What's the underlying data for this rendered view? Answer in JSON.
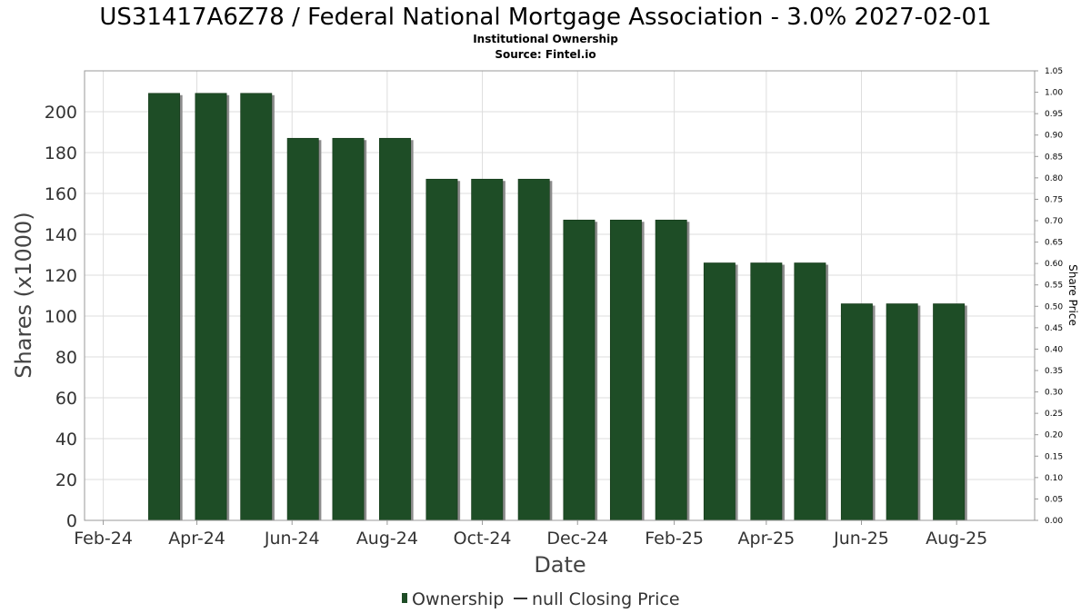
{
  "title": "US31417A6Z78 / Federal National Mortgage Association - 3.0% 2027-02-01",
  "subtitle_lines": [
    "Institutional Ownership",
    "Source: Fintel.io"
  ],
  "colors": {
    "bar": "#1e4d26",
    "bar_shadow": "#8c8c8c",
    "grid": "#dddddd",
    "frame": "#999999"
  },
  "legend": {
    "ownership_label": "Ownership",
    "price_label": "null Closing Price"
  },
  "chart_data": {
    "type": "bar",
    "xlabel": "Date",
    "ylabel": "Shares (x1000)",
    "y2label": "Share Price",
    "ylim": [
      0,
      220
    ],
    "y2lim": [
      0,
      1.05
    ],
    "yticks": [
      0,
      20,
      40,
      60,
      80,
      100,
      120,
      140,
      160,
      180,
      200
    ],
    "y2ticks": [
      "0.00",
      "0.05",
      "0.10",
      "0.15",
      "0.20",
      "0.25",
      "0.30",
      "0.35",
      "0.40",
      "0.45",
      "0.50",
      "0.55",
      "0.60",
      "0.65",
      "0.70",
      "0.75",
      "0.80",
      "0.85",
      "0.90",
      "0.95",
      "1.00",
      "1.05"
    ],
    "xlim": [
      "2024-01-20",
      "2025-09-20"
    ],
    "xticks": [
      {
        "date": "2024-02-01",
        "label": "Feb-24"
      },
      {
        "date": "2024-04-01",
        "label": "Apr-24"
      },
      {
        "date": "2024-06-01",
        "label": "Jun-24"
      },
      {
        "date": "2024-08-01",
        "label": "Aug-24"
      },
      {
        "date": "2024-10-01",
        "label": "Oct-24"
      },
      {
        "date": "2024-12-01",
        "label": "Dec-24"
      },
      {
        "date": "2025-02-01",
        "label": "Feb-25"
      },
      {
        "date": "2025-04-01",
        "label": "Apr-25"
      },
      {
        "date": "2025-06-01",
        "label": "Jun-25"
      },
      {
        "date": "2025-08-01",
        "label": "Aug-25"
      }
    ],
    "grid": true,
    "legend_position": "bottom",
    "series": [
      {
        "name": "Ownership",
        "points": [
          {
            "start": "2024-03-01",
            "end": "2024-03-21",
            "value": 209
          },
          {
            "start": "2024-03-31",
            "end": "2024-04-20",
            "value": 209
          },
          {
            "start": "2024-04-29",
            "end": "2024-05-19",
            "value": 209
          },
          {
            "start": "2024-05-29",
            "end": "2024-06-18",
            "value": 187
          },
          {
            "start": "2024-06-27",
            "end": "2024-07-17",
            "value": 187
          },
          {
            "start": "2024-07-27",
            "end": "2024-08-16",
            "value": 187
          },
          {
            "start": "2024-08-26",
            "end": "2024-09-15",
            "value": 167
          },
          {
            "start": "2024-09-24",
            "end": "2024-10-14",
            "value": 167
          },
          {
            "start": "2024-10-24",
            "end": "2024-11-13",
            "value": 167
          },
          {
            "start": "2024-11-22",
            "end": "2024-12-12",
            "value": 147
          },
          {
            "start": "2024-12-22",
            "end": "2025-01-11",
            "value": 147
          },
          {
            "start": "2025-01-20",
            "end": "2025-02-09",
            "value": 147
          },
          {
            "start": "2025-02-20",
            "end": "2025-03-12",
            "value": 126
          },
          {
            "start": "2025-03-22",
            "end": "2025-04-11",
            "value": 126
          },
          {
            "start": "2025-04-19",
            "end": "2025-05-09",
            "value": 126
          },
          {
            "start": "2025-05-19",
            "end": "2025-06-08",
            "value": 106
          },
          {
            "start": "2025-06-17",
            "end": "2025-07-07",
            "value": 106
          },
          {
            "start": "2025-07-17",
            "end": "2025-08-06",
            "value": 106
          }
        ]
      }
    ]
  }
}
